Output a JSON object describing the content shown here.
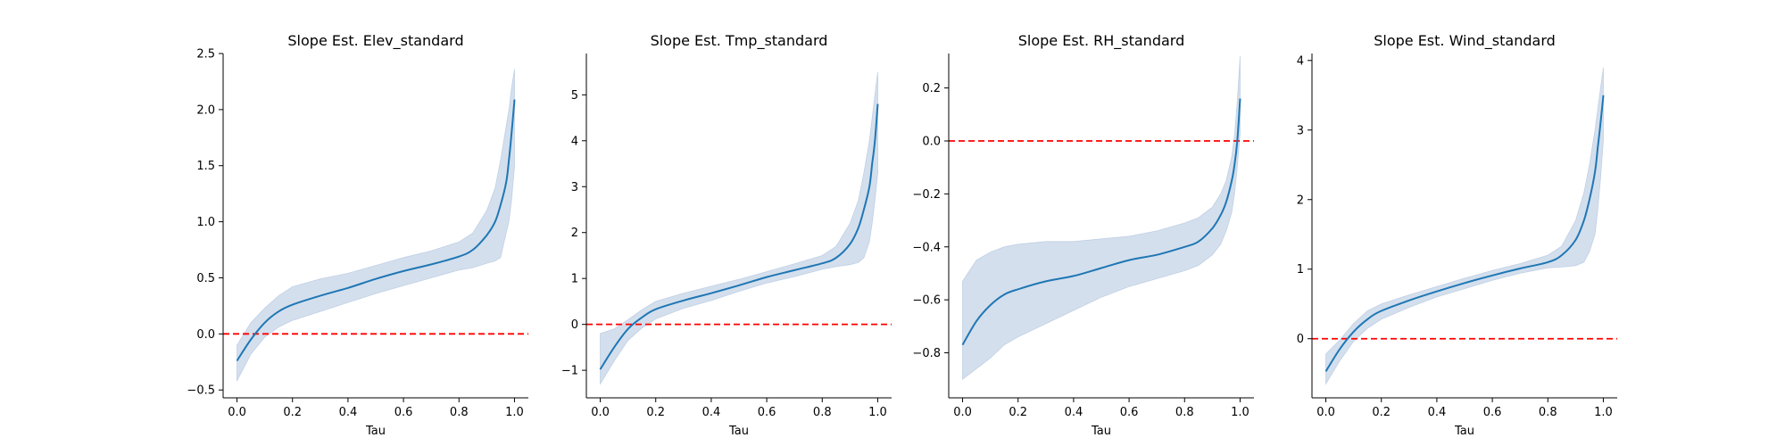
{
  "chart_data": [
    {
      "type": "line",
      "title": "Slope Est. Elev_standard",
      "xlabel": "Tau",
      "ylabel": "",
      "xlim": [
        -0.05,
        1.05
      ],
      "ylim": [
        -0.57,
        2.5
      ],
      "xticks": [
        0.0,
        0.2,
        0.4,
        0.6,
        0.8,
        1.0
      ],
      "xtick_labels": [
        "0.0",
        "0.2",
        "0.4",
        "0.6",
        "0.8",
        "1.0"
      ],
      "yticks": [
        -0.5,
        0.0,
        0.5,
        1.0,
        1.5,
        2.0,
        2.5
      ],
      "ytick_labels": [
        "−0.5",
        "0.0",
        "0.5",
        "1.0",
        "1.5",
        "2.0",
        "2.5"
      ],
      "reference_line": 0,
      "x": [
        0.0,
        0.05,
        0.1,
        0.15,
        0.2,
        0.3,
        0.4,
        0.5,
        0.6,
        0.7,
        0.8,
        0.85,
        0.9,
        0.93,
        0.95,
        0.97,
        0.98,
        0.99,
        1.0
      ],
      "estimate": [
        -0.24,
        -0.05,
        0.1,
        0.2,
        0.26,
        0.34,
        0.41,
        0.49,
        0.56,
        0.62,
        0.69,
        0.75,
        0.88,
        1.0,
        1.15,
        1.35,
        1.55,
        1.8,
        2.09
      ],
      "lower": [
        -0.42,
        -0.18,
        -0.03,
        0.06,
        0.12,
        0.2,
        0.28,
        0.36,
        0.43,
        0.5,
        0.57,
        0.59,
        0.63,
        0.65,
        0.68,
        0.9,
        1.0,
        1.2,
        1.5
      ],
      "upper": [
        -0.1,
        0.1,
        0.23,
        0.34,
        0.42,
        0.49,
        0.54,
        0.61,
        0.68,
        0.74,
        0.82,
        0.9,
        1.1,
        1.3,
        1.55,
        1.85,
        2.0,
        2.2,
        2.36
      ]
    },
    {
      "type": "line",
      "title": "Slope Est. Tmp_standard",
      "xlabel": "Tau",
      "ylabel": "",
      "xlim": [
        -0.05,
        1.05
      ],
      "ylim": [
        -1.6,
        5.9
      ],
      "xticks": [
        0.0,
        0.2,
        0.4,
        0.6,
        0.8,
        1.0
      ],
      "xtick_labels": [
        "0.0",
        "0.2",
        "0.4",
        "0.6",
        "0.8",
        "1.0"
      ],
      "yticks": [
        -1,
        0,
        1,
        2,
        3,
        4,
        5
      ],
      "ytick_labels": [
        "−1",
        "0",
        "1",
        "2",
        "3",
        "4",
        "5"
      ],
      "reference_line": 0,
      "x": [
        0.0,
        0.05,
        0.1,
        0.15,
        0.2,
        0.3,
        0.4,
        0.5,
        0.6,
        0.7,
        0.8,
        0.85,
        0.9,
        0.93,
        0.95,
        0.97,
        0.98,
        0.99,
        1.0
      ],
      "estimate": [
        -0.98,
        -0.5,
        -0.1,
        0.15,
        0.33,
        0.52,
        0.68,
        0.85,
        1.03,
        1.18,
        1.33,
        1.45,
        1.75,
        2.1,
        2.5,
        3.0,
        3.5,
        4.0,
        4.8
      ],
      "lower": [
        -1.3,
        -0.8,
        -0.35,
        -0.08,
        0.12,
        0.35,
        0.52,
        0.72,
        0.9,
        1.04,
        1.2,
        1.26,
        1.3,
        1.35,
        1.45,
        1.8,
        2.2,
        2.7,
        3.3
      ],
      "upper": [
        -0.2,
        -0.1,
        0.1,
        0.32,
        0.5,
        0.68,
        0.83,
        0.98,
        1.15,
        1.32,
        1.5,
        1.7,
        2.2,
        2.7,
        3.3,
        4.0,
        4.5,
        5.0,
        5.5
      ]
    },
    {
      "type": "line",
      "title": "Slope Est. RH_standard",
      "xlabel": "Tau",
      "ylabel": "",
      "xlim": [
        -0.05,
        1.05
      ],
      "ylim": [
        -0.97,
        0.33
      ],
      "xticks": [
        0.0,
        0.2,
        0.4,
        0.6,
        0.8,
        1.0
      ],
      "xtick_labels": [
        "0.0",
        "0.2",
        "0.4",
        "0.6",
        "0.8",
        "1.0"
      ],
      "yticks": [
        -0.8,
        -0.6,
        -0.4,
        -0.2,
        0.0,
        0.2
      ],
      "ytick_labels": [
        "−0.8",
        "−0.6",
        "−0.4",
        "−0.2",
        "0.0",
        "0.2"
      ],
      "reference_line": 0,
      "x": [
        0.0,
        0.05,
        0.1,
        0.15,
        0.2,
        0.3,
        0.4,
        0.5,
        0.6,
        0.7,
        0.8,
        0.85,
        0.9,
        0.93,
        0.95,
        0.97,
        0.98,
        0.99,
        1.0
      ],
      "estimate": [
        -0.77,
        -0.68,
        -0.62,
        -0.58,
        -0.56,
        -0.53,
        -0.51,
        -0.48,
        -0.45,
        -0.43,
        -0.4,
        -0.38,
        -0.33,
        -0.28,
        -0.23,
        -0.15,
        -0.09,
        0.0,
        0.16
      ],
      "lower": [
        -0.9,
        -0.86,
        -0.82,
        -0.77,
        -0.74,
        -0.69,
        -0.64,
        -0.59,
        -0.55,
        -0.52,
        -0.49,
        -0.47,
        -0.43,
        -0.39,
        -0.34,
        -0.27,
        -0.2,
        -0.1,
        0.03
      ],
      "upper": [
        -0.53,
        -0.45,
        -0.42,
        -0.4,
        -0.39,
        -0.38,
        -0.38,
        -0.37,
        -0.36,
        -0.34,
        -0.31,
        -0.29,
        -0.25,
        -0.2,
        -0.15,
        -0.06,
        0.02,
        0.15,
        0.32
      ]
    },
    {
      "type": "line",
      "title": "Slope Est. Wind_standard",
      "xlabel": "Tau",
      "ylabel": "",
      "xlim": [
        -0.05,
        1.05
      ],
      "ylim": [
        -0.85,
        4.1
      ],
      "xticks": [
        0.0,
        0.2,
        0.4,
        0.6,
        0.8,
        1.0
      ],
      "xtick_labels": [
        "0.0",
        "0.2",
        "0.4",
        "0.6",
        "0.8",
        "1.0"
      ],
      "yticks": [
        0,
        1,
        2,
        3,
        4
      ],
      "ytick_labels": [
        "0",
        "1",
        "2",
        "3",
        "4"
      ],
      "reference_line": 0,
      "x": [
        0.0,
        0.05,
        0.1,
        0.15,
        0.2,
        0.3,
        0.4,
        0.5,
        0.6,
        0.7,
        0.8,
        0.85,
        0.9,
        0.93,
        0.95,
        0.97,
        0.98,
        0.99,
        1.0
      ],
      "estimate": [
        -0.47,
        -0.15,
        0.1,
        0.28,
        0.4,
        0.55,
        0.68,
        0.8,
        0.91,
        1.01,
        1.1,
        1.2,
        1.42,
        1.7,
        2.0,
        2.4,
        2.75,
        3.1,
        3.5
      ],
      "lower": [
        -0.65,
        -0.32,
        -0.04,
        0.15,
        0.28,
        0.45,
        0.6,
        0.72,
        0.84,
        0.94,
        1.02,
        1.03,
        1.05,
        1.1,
        1.25,
        1.5,
        1.85,
        2.3,
        2.85
      ],
      "upper": [
        -0.22,
        -0.02,
        0.22,
        0.4,
        0.5,
        0.63,
        0.75,
        0.87,
        0.98,
        1.08,
        1.2,
        1.33,
        1.7,
        2.1,
        2.5,
        3.0,
        3.3,
        3.6,
        3.9
      ]
    }
  ],
  "colors": {
    "line": "#1f77b4",
    "band": "#b0c4de",
    "reference": "#ff0000"
  }
}
